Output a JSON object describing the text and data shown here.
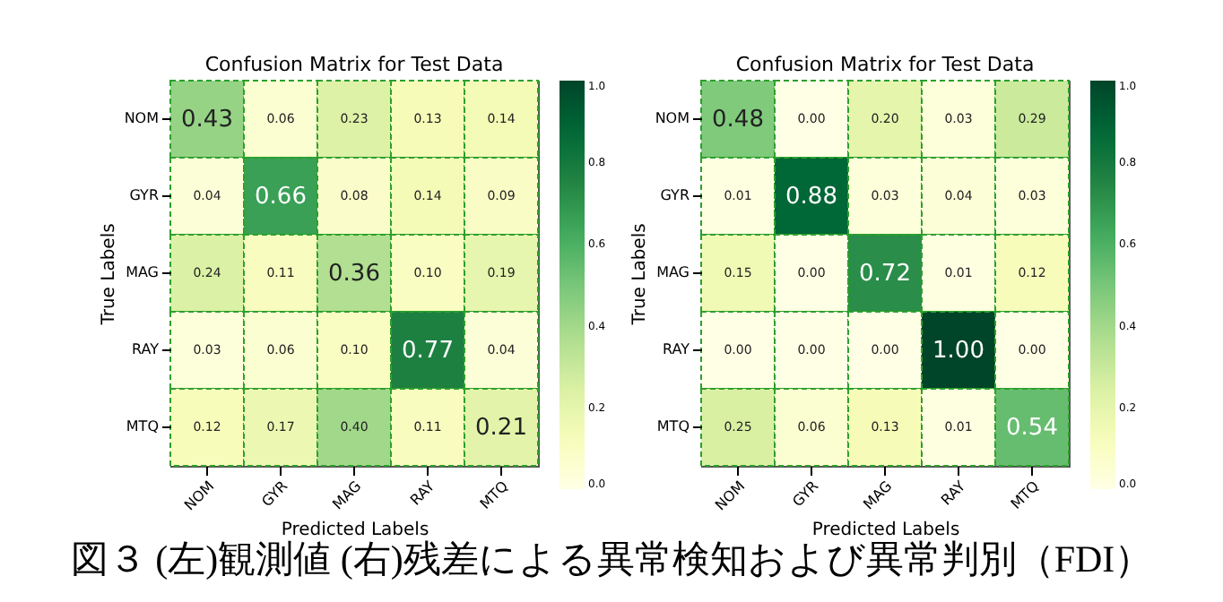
{
  "chart_data": [
    {
      "type": "heatmap",
      "title": "Confusion Matrix for Test Data",
      "xlabel": "Predicted Labels",
      "ylabel": "True Labels",
      "categories": [
        "NOM",
        "GYR",
        "MAG",
        "RAY",
        "MTQ"
      ],
      "y_categories": [
        "NOM",
        "GYR",
        "MAG",
        "RAY",
        "MTQ"
      ],
      "cells": [
        [
          0.43,
          0.06,
          0.23,
          0.13,
          0.14
        ],
        [
          0.04,
          0.66,
          0.08,
          0.14,
          0.09
        ],
        [
          0.24,
          0.11,
          0.36,
          0.1,
          0.19
        ],
        [
          0.03,
          0.06,
          0.1,
          0.77,
          0.04
        ],
        [
          0.12,
          0.17,
          0.4,
          0.11,
          0.21
        ]
      ],
      "cell_labels": [
        [
          "0.43",
          "0.06",
          "0.23",
          "0.13",
          "0.14"
        ],
        [
          "0.04",
          "0.66",
          "0.08",
          "0.14",
          "0.09"
        ],
        [
          "0.24",
          "0.11",
          "0.36",
          "0.10",
          "0.19"
        ],
        [
          "0.03",
          "0.06",
          "0.10",
          "0.77",
          "0.04"
        ],
        [
          "0.12",
          "0.17",
          "0.40",
          "0.11",
          "0.21"
        ]
      ],
      "clim": [
        0,
        1
      ],
      "cticks": [
        {
          "value": 0,
          "label": "0.0"
        },
        {
          "value": 0.2,
          "label": "0.2"
        },
        {
          "value": 0.4,
          "label": "0.4"
        },
        {
          "value": 0.6,
          "label": "0.6"
        },
        {
          "value": 0.8,
          "label": "0.8"
        },
        {
          "value": 1,
          "label": "1.0"
        }
      ],
      "annotations": [
        "図３ (左)観測値 (右)残差による異常検知および異常判別（FDI）"
      ]
    },
    {
      "type": "heatmap",
      "title": "Confusion Matrix for Test Data",
      "xlabel": "Predicted Labels",
      "ylabel": "True Labels",
      "categories": [
        "NOM",
        "GYR",
        "MAG",
        "RAY",
        "MTQ"
      ],
      "y_categories": [
        "NOM",
        "GYR",
        "MAG",
        "RAY",
        "MTQ"
      ],
      "cells": [
        [
          0.48,
          0.0,
          0.2,
          0.03,
          0.29
        ],
        [
          0.01,
          0.88,
          0.03,
          0.04,
          0.03
        ],
        [
          0.15,
          0.0,
          0.72,
          0.01,
          0.12
        ],
        [
          0.0,
          0.0,
          0.0,
          1.0,
          0.0
        ],
        [
          0.25,
          0.06,
          0.13,
          0.01,
          0.54
        ]
      ],
      "cell_labels": [
        [
          "0.48",
          "0.00",
          "0.20",
          "0.03",
          "0.29"
        ],
        [
          "0.01",
          "0.88",
          "0.03",
          "0.04",
          "0.03"
        ],
        [
          "0.15",
          "0.00",
          "0.72",
          "0.01",
          "0.12"
        ],
        [
          "0.00",
          "0.00",
          "0.00",
          "1.00",
          "0.00"
        ],
        [
          "0.25",
          "0.06",
          "0.13",
          "0.01",
          "0.54"
        ]
      ],
      "clim": [
        0,
        1
      ],
      "cticks": [
        {
          "value": 0,
          "label": "0.0"
        },
        {
          "value": 0.2,
          "label": "0.2"
        },
        {
          "value": 0.4,
          "label": "0.4"
        },
        {
          "value": 0.6,
          "label": "0.6"
        },
        {
          "value": 0.8,
          "label": "0.8"
        },
        {
          "value": 1,
          "label": "1.0"
        }
      ]
    }
  ]
}
